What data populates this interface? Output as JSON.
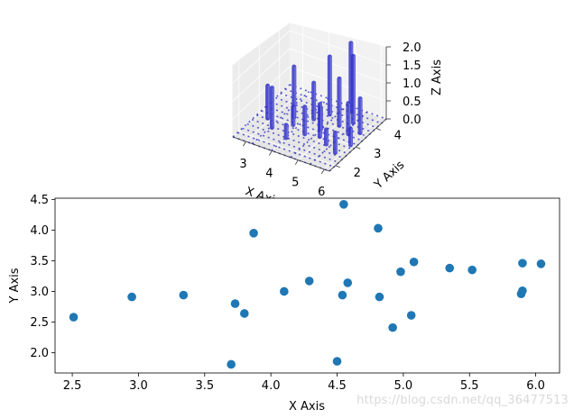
{
  "watermark": "https://blog.csdn.net/qq_36477513",
  "chart_data": [
    {
      "type": "bar3d",
      "title": "",
      "xlabel": "X Axis",
      "ylabel": "Y Axis",
      "zlabel": "Z Axis",
      "xticks": [
        "3",
        "4",
        "5",
        "6"
      ],
      "yticks": [
        "2",
        "3",
        "4"
      ],
      "zticks": [
        "0.0",
        "0.5",
        "1.0",
        "1.5",
        "2.0"
      ],
      "xlim": [
        2.5,
        6.2
      ],
      "ylim": [
        1.7,
        4.5
      ],
      "zlim": [
        0,
        2.0
      ],
      "bar_color": "#3535c8",
      "grid_color": "#3535c8",
      "bars": [
        {
          "x": 2.9,
          "y": 2.9,
          "z": 0.9
        },
        {
          "x": 3.3,
          "y": 2.6,
          "z": 1.1
        },
        {
          "x": 3.6,
          "y": 3.3,
          "z": 1.4
        },
        {
          "x": 3.8,
          "y": 3.0,
          "z": 0.5
        },
        {
          "x": 4.0,
          "y": 2.4,
          "z": 0.35
        },
        {
          "x": 4.2,
          "y": 3.5,
          "z": 1.0
        },
        {
          "x": 4.4,
          "y": 2.8,
          "z": 0.75
        },
        {
          "x": 4.5,
          "y": 3.9,
          "z": 1.6
        },
        {
          "x": 4.7,
          "y": 3.2,
          "z": 0.6
        },
        {
          "x": 4.9,
          "y": 2.9,
          "z": 0.9
        },
        {
          "x": 5.0,
          "y": 4.3,
          "z": 1.9
        },
        {
          "x": 5.1,
          "y": 3.6,
          "z": 1.3
        },
        {
          "x": 5.3,
          "y": 2.7,
          "z": 0.4
        },
        {
          "x": 5.4,
          "y": 3.9,
          "z": 1.85
        },
        {
          "x": 5.6,
          "y": 3.4,
          "z": 0.85
        },
        {
          "x": 5.8,
          "y": 2.5,
          "z": 0.55
        },
        {
          "x": 5.9,
          "y": 3.6,
          "z": 0.95
        },
        {
          "x": 6.0,
          "y": 3.0,
          "z": 0.45
        }
      ]
    },
    {
      "type": "scatter",
      "title": "",
      "xlabel": "X Axis",
      "ylabel": "Y Axis",
      "xlim": [
        2.37,
        6.18
      ],
      "ylim": [
        1.67,
        4.52
      ],
      "xticks": [
        "2.5",
        "3.0",
        "3.5",
        "4.0",
        "4.5",
        "5.0",
        "5.5",
        "6.0"
      ],
      "yticks": [
        "2.0",
        "2.5",
        "3.0",
        "3.5",
        "4.0",
        "4.5"
      ],
      "xtick_values": [
        2.5,
        3.0,
        3.5,
        4.0,
        4.5,
        5.0,
        5.5,
        6.0
      ],
      "ytick_values": [
        2.0,
        2.5,
        3.0,
        3.5,
        4.0,
        4.5
      ],
      "color": "#1f77b4",
      "x": [
        2.51,
        2.95,
        3.34,
        3.7,
        3.73,
        3.8,
        3.87,
        4.1,
        4.29,
        4.5,
        4.54,
        4.55,
        4.58,
        4.81,
        4.82,
        4.92,
        4.98,
        5.06,
        5.08,
        5.35,
        5.52,
        5.89,
        5.9,
        5.9,
        6.04
      ],
      "y": [
        2.58,
        2.91,
        2.94,
        1.81,
        2.8,
        2.64,
        3.95,
        3.0,
        3.17,
        1.86,
        2.94,
        4.42,
        3.14,
        4.03,
        2.91,
        2.41,
        3.32,
        2.61,
        3.48,
        3.38,
        3.35,
        2.96,
        3.01,
        3.46,
        3.45
      ]
    }
  ]
}
